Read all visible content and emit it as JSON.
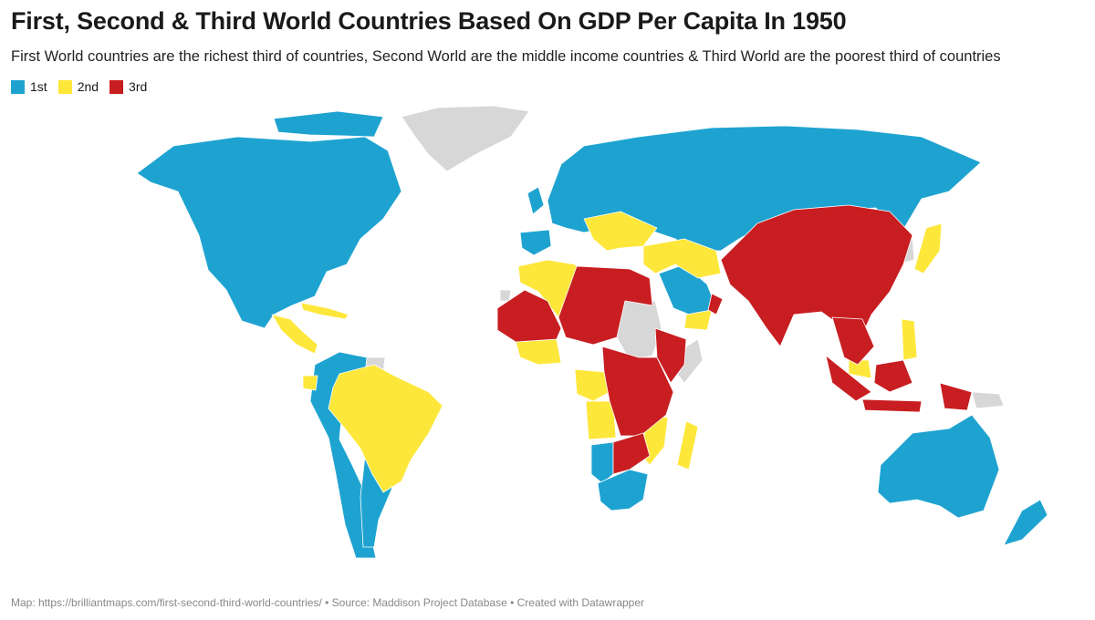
{
  "header": {
    "title": "First, Second & Third World Countries Based On GDP Per Capita In 1950",
    "subtitle": "First World countries are the richest third of countries, Second World are the middle income countries & Third World are the poorest third of countries"
  },
  "legend": {
    "items": [
      {
        "label": "1st",
        "color": "#1ea3d1"
      },
      {
        "label": "2nd",
        "color": "#fde73b"
      },
      {
        "label": "3rd",
        "color": "#c81e21"
      }
    ]
  },
  "map": {
    "no_data_color": "#d7d7d7",
    "border_color": "#ffffff"
  },
  "footer": {
    "credit": "Map: https://brilliantmaps.com/first-second-third-world-countries/ • Source: Maddison Project Database • Created with Datawrapper"
  }
}
